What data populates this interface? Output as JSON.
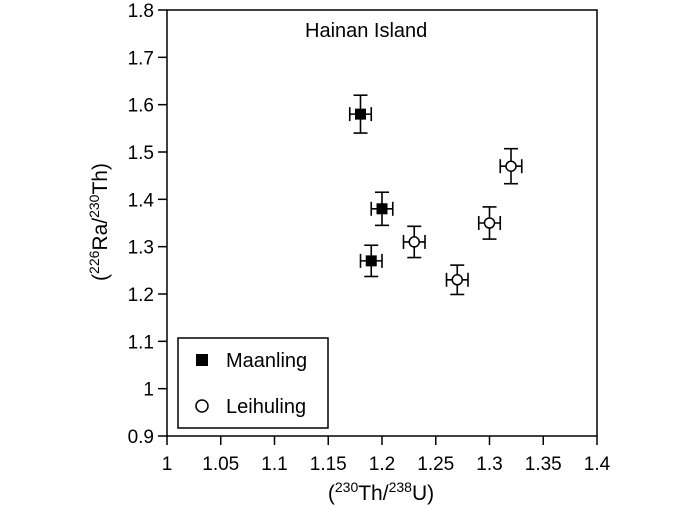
{
  "chart_data": {
    "type": "scatter",
    "title": "Hainan Island",
    "xlabel": {
      "open": "(",
      "iso1": "230",
      "el1": "Th/",
      "iso2": "238",
      "el2": "U)"
    },
    "ylabel": {
      "open": "(",
      "iso1": "226",
      "el1": "Ra/",
      "iso2": "230",
      "el2": "Th)"
    },
    "xlim": [
      1.0,
      1.4
    ],
    "ylim": [
      0.9,
      1.8
    ],
    "xticks": [
      "1",
      "1.05",
      "1.1",
      "1.15",
      "1.2",
      "1.25",
      "1.3",
      "1.35",
      "1.4"
    ],
    "yticks": [
      "0.9",
      "1",
      "1.1",
      "1.2",
      "1.3",
      "1.4",
      "1.5",
      "1.6",
      "1.7",
      "1.8"
    ],
    "grid": false,
    "legend_position": "bottom-left",
    "series": [
      {
        "name": "Maanling",
        "marker": "filled-square",
        "points": [
          {
            "x": 1.18,
            "y": 1.58,
            "xerr": 0.01,
            "yerr": 0.04
          },
          {
            "x": 1.2,
            "y": 1.38,
            "xerr": 0.01,
            "yerr": 0.035
          },
          {
            "x": 1.19,
            "y": 1.27,
            "xerr": 0.01,
            "yerr": 0.033
          }
        ]
      },
      {
        "name": "Leihuling",
        "marker": "open-circle",
        "points": [
          {
            "x": 1.23,
            "y": 1.31,
            "xerr": 0.01,
            "yerr": 0.033
          },
          {
            "x": 1.27,
            "y": 1.23,
            "xerr": 0.01,
            "yerr": 0.031
          },
          {
            "x": 1.3,
            "y": 1.35,
            "xerr": 0.01,
            "yerr": 0.034
          },
          {
            "x": 1.32,
            "y": 1.47,
            "xerr": 0.01,
            "yerr": 0.037
          }
        ]
      }
    ],
    "colors": {
      "axis": "#000000",
      "marker_fill": "#000000",
      "open_marker_fill": "#ffffff"
    }
  }
}
